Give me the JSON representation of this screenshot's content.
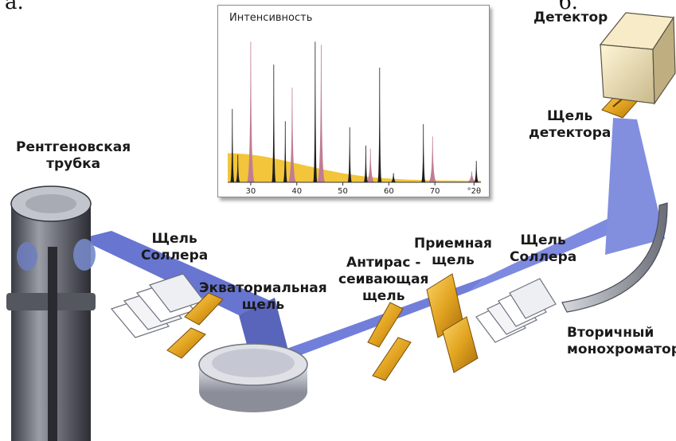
{
  "top_fragment": {
    "left": "а.",
    "right": "б."
  },
  "chart_data": {
    "type": "line",
    "title": "Интенсивность",
    "x_ticks": [
      "30",
      "40",
      "50",
      "60",
      "70",
      "°2θ"
    ],
    "xlim": [
      25,
      80
    ],
    "series": [
      {
        "color": "#c07d92",
        "peaks": [
          [
            30,
            0.92
          ],
          [
            39,
            0.62
          ],
          [
            45.3,
            0.9
          ],
          [
            56,
            0.22
          ],
          [
            69.5,
            0.3
          ],
          [
            78,
            0.07
          ]
        ]
      },
      {
        "color": "#1d1d1d",
        "peaks": [
          [
            26,
            0.48
          ],
          [
            27.2,
            0.18
          ],
          [
            35,
            0.77
          ],
          [
            37.5,
            0.4
          ],
          [
            44,
            0.92
          ],
          [
            51.5,
            0.36
          ],
          [
            55,
            0.24
          ],
          [
            58,
            0.75
          ],
          [
            61,
            0.06
          ],
          [
            67.5,
            0.38
          ],
          [
            79,
            0.14
          ]
        ]
      }
    ],
    "background_color": "#f2c53a"
  },
  "labels": {
    "tube": [
      "Рентгеновская",
      "трубка"
    ],
    "soller1": [
      "Щель",
      "Соллера"
    ],
    "equatorial": [
      "Экваториальная",
      "щель"
    ],
    "antiscatter": [
      "Антирас -",
      "сеивающая",
      "щель"
    ],
    "receiving": [
      "Приемная",
      "щель"
    ],
    "soller2": [
      "Щель",
      "Соллера"
    ],
    "detector": "Детектор",
    "detector_slit": [
      "Щель",
      "детектора"
    ],
    "monochromator": [
      "Вторичный",
      "монохроматор"
    ]
  }
}
